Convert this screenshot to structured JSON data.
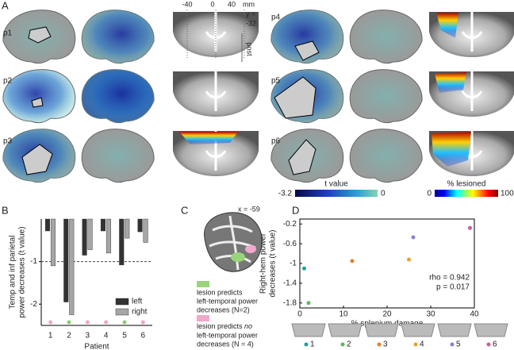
{
  "panels": {
    "A": {
      "letter": "A",
      "patients": [
        "p1",
        "p2",
        "p3",
        "p4",
        "p5",
        "p6"
      ],
      "slice_labels": {
        "x_ticks": [
          "-40",
          "0",
          "40"
        ],
        "unit": "mm",
        "y_line1": "y =",
        "y_line2": "-32",
        "direction": "post"
      },
      "t_colorbar": {
        "label": "t value",
        "min_label": "-3.2",
        "max_label": "0"
      },
      "lesion_colorbar": {
        "label": "% lesioned",
        "min_label": "0",
        "max_label": "100"
      }
    },
    "B": {
      "letter": "B"
    },
    "C": {
      "letter": "C",
      "slice_label": "x = -59",
      "legend_green": [
        "lesion predicts",
        "left-temporal power",
        "decreases (N=2)"
      ],
      "legend_pink": {
        "line1": "lesion predicts",
        "emphasis": "no",
        "line2": "left-temporal power",
        "line3": "decreases (N = 4)"
      }
    },
    "D": {
      "letter": "D"
    }
  },
  "chart_data": [
    {
      "type": "bar",
      "y_label": [
        "Temp and inf parietal",
        "power decreases (t value)"
      ],
      "x_label": "Patient",
      "categories": [
        "1",
        "2",
        "3",
        "4",
        "5",
        "6"
      ],
      "series": [
        {
          "name": "left",
          "color": "#333333",
          "values": [
            -0.28,
            -1.95,
            -0.85,
            -0.28,
            -1.08,
            -0.3
          ]
        },
        {
          "name": "right",
          "color": "#a6a6a6",
          "values": [
            -1.1,
            -2.25,
            -0.72,
            -0.8,
            -0.45,
            -0.55
          ]
        }
      ],
      "patient_marker_colors": [
        "#f2a2c6",
        "#8ccc6a",
        "#f2a2c6",
        "#f2a2c6",
        "#8ccc6a",
        "#f2a2c6"
      ],
      "reference_line": -1,
      "ylim": [
        -2.5,
        0
      ],
      "yticks": [
        -2,
        -1
      ],
      "legend": "lower right"
    },
    {
      "type": "scatter",
      "y_label": [
        "Right-hem power",
        "decreases (t value)"
      ],
      "x_label": "% splenium damage",
      "categories": [
        "1",
        "2",
        "3",
        "4",
        "5",
        "6"
      ],
      "x": [
        1,
        2,
        12,
        25,
        26,
        39
      ],
      "values": [
        -1.1,
        -1.8,
        -0.95,
        -0.92,
        -0.47,
        -0.28
      ],
      "colors": [
        "#1fa39a",
        "#5cb85c",
        "#e0822a",
        "#e4a12e",
        "#8a80d0",
        "#cf5a9a"
      ],
      "annotations": [
        "rho = 0.942",
        "p = 0.017"
      ],
      "xlim": [
        0,
        40
      ],
      "xticks": [
        0,
        10,
        20,
        30,
        40
      ],
      "ylim": [
        -1.9,
        -0.1
      ],
      "yticks": [
        -0.2,
        -0.6,
        -1.0,
        -1.4,
        -1.8
      ]
    }
  ]
}
